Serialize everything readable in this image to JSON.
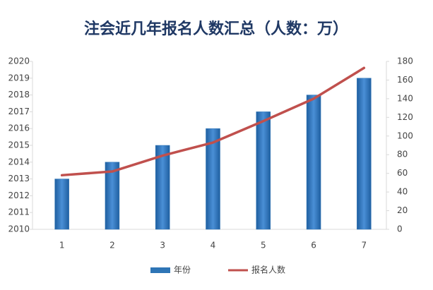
{
  "chart_data": {
    "type": "bar",
    "title": "注会近几年报名人数汇总（人数：万）",
    "categories": [
      "1",
      "2",
      "3",
      "4",
      "5",
      "6",
      "7"
    ],
    "series": [
      {
        "name": "年份",
        "type": "bar",
        "color": "#2e75b6",
        "values": [
          2013,
          2014,
          2015,
          2016,
          2017,
          2018,
          2019
        ]
      },
      {
        "name": "报名人数",
        "type": "line",
        "axis": "y2",
        "color": "#c0504d",
        "values": [
          58,
          62,
          79,
          93,
          116,
          140,
          173
        ]
      }
    ],
    "ylim": [
      2010,
      2020
    ],
    "yticks": [
      2010,
      2011,
      2012,
      2013,
      2014,
      2015,
      2016,
      2017,
      2018,
      2019,
      2020
    ],
    "y2lim": [
      0,
      180
    ],
    "y2ticks": [
      0,
      20,
      40,
      60,
      80,
      100,
      120,
      140,
      160,
      180
    ],
    "grid": false,
    "legend": "bottom"
  }
}
